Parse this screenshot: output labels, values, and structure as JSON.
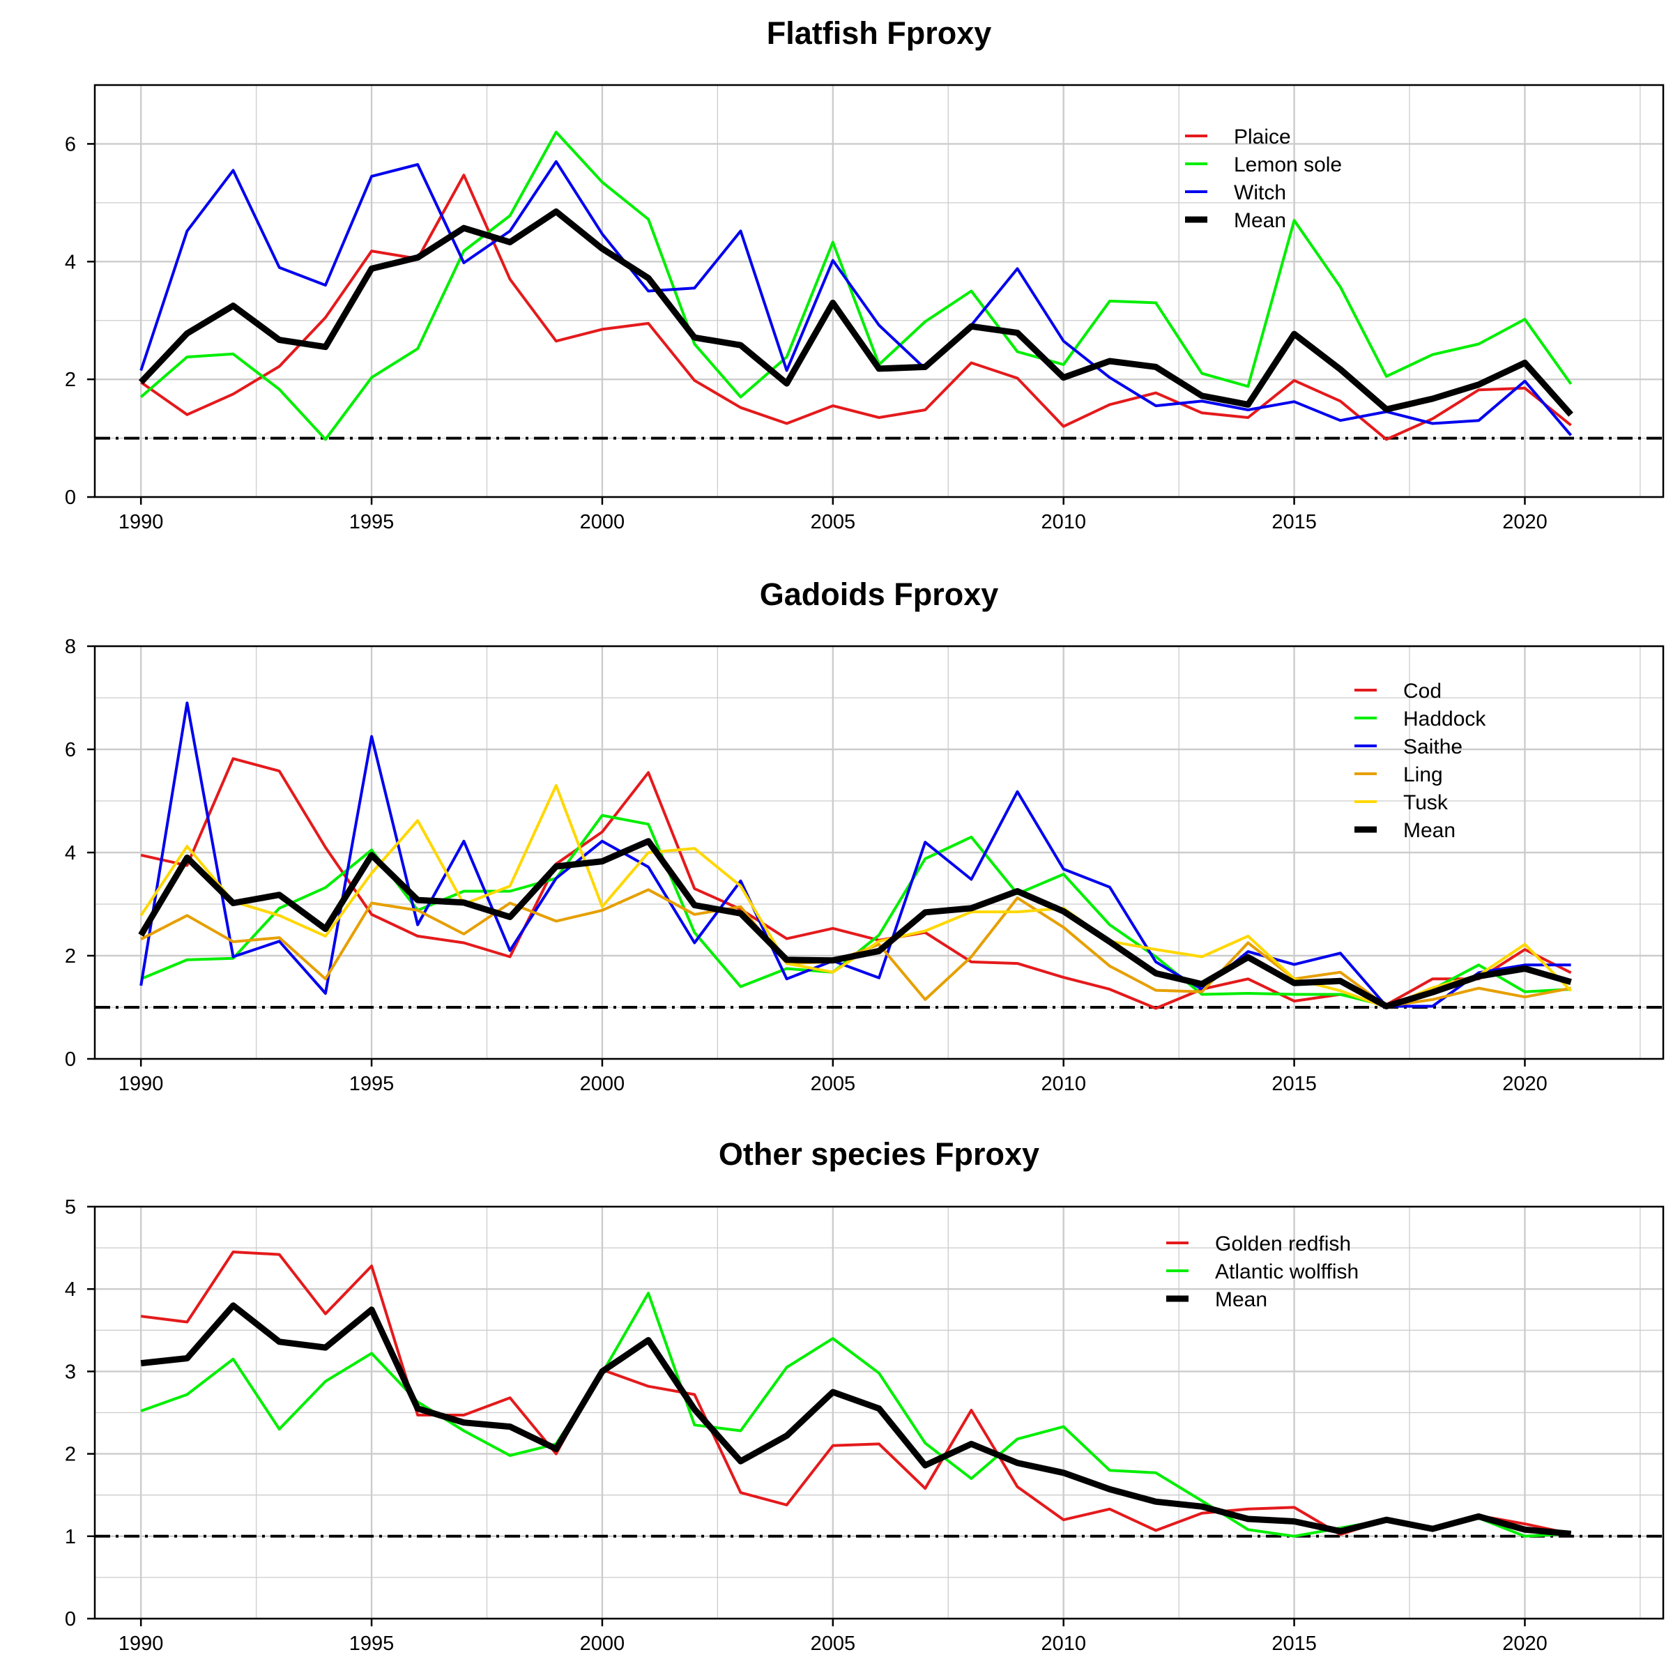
{
  "chart_data": [
    {
      "type": "line",
      "title": "Flatfish Fproxy",
      "x": [
        1990,
        1991,
        1992,
        1993,
        1994,
        1995,
        1996,
        1997,
        1998,
        1999,
        2000,
        2001,
        2002,
        2003,
        2004,
        2005,
        2006,
        2007,
        2008,
        2009,
        2010,
        2011,
        2012,
        2013,
        2014,
        2015,
        2016,
        2017,
        2018,
        2019,
        2020,
        2021
      ],
      "xlim": [
        1989,
        2023
      ],
      "xticks": [
        1990,
        1995,
        2000,
        2005,
        2010,
        2015,
        2020
      ],
      "ylim": [
        0,
        7
      ],
      "yticks": [
        0,
        2,
        4,
        6
      ],
      "reference_line": 1,
      "legend_position": "top-right",
      "grid": true,
      "series": [
        {
          "name": "Plaice",
          "color": "#e41a1c",
          "values": [
            1.95,
            1.4,
            1.75,
            2.22,
            3.05,
            4.18,
            4.05,
            5.47,
            3.7,
            2.65,
            2.85,
            2.95,
            1.98,
            1.52,
            1.25,
            1.55,
            1.35,
            1.48,
            2.28,
            2.02,
            1.2,
            1.57,
            1.77,
            1.43,
            1.35,
            1.98,
            1.63,
            0.98,
            1.33,
            1.82,
            1.85,
            1.22
          ]
        },
        {
          "name": "Lemon sole",
          "color": "#00ee00",
          "values": [
            1.7,
            2.38,
            2.43,
            1.83,
            0.98,
            2.03,
            2.52,
            4.18,
            4.78,
            6.2,
            5.35,
            4.72,
            2.6,
            1.7,
            2.38,
            4.33,
            2.25,
            2.98,
            3.5,
            2.47,
            2.25,
            3.33,
            3.3,
            2.1,
            1.88,
            4.7,
            3.57,
            2.05,
            2.42,
            2.6,
            3.02,
            1.92
          ]
        },
        {
          "name": "Witch",
          "color": "#0000ee",
          "values": [
            2.15,
            4.52,
            5.55,
            3.9,
            3.6,
            5.45,
            5.65,
            3.98,
            4.52,
            5.7,
            4.47,
            3.5,
            3.55,
            4.52,
            2.15,
            4.02,
            2.92,
            2.18,
            2.92,
            3.88,
            2.65,
            2.03,
            1.55,
            1.63,
            1.48,
            1.62,
            1.3,
            1.45,
            1.25,
            1.3,
            1.97,
            1.05
          ]
        },
        {
          "name": "Mean",
          "color": "#000000",
          "values": [
            1.95,
            2.78,
            3.25,
            2.67,
            2.55,
            3.88,
            4.07,
            4.57,
            4.33,
            4.85,
            4.22,
            3.72,
            2.71,
            2.58,
            1.93,
            3.3,
            2.18,
            2.21,
            2.9,
            2.79,
            2.03,
            2.31,
            2.21,
            1.72,
            1.57,
            2.77,
            2.17,
            1.49,
            1.67,
            1.91,
            2.28,
            1.4
          ]
        }
      ]
    },
    {
      "type": "line",
      "title": "Gadoids Fproxy",
      "x": [
        1990,
        1991,
        1992,
        1993,
        1994,
        1995,
        1996,
        1997,
        1998,
        1999,
        2000,
        2001,
        2002,
        2003,
        2004,
        2005,
        2006,
        2007,
        2008,
        2009,
        2010,
        2011,
        2012,
        2013,
        2014,
        2015,
        2016,
        2017,
        2018,
        2019,
        2020,
        2021
      ],
      "xlim": [
        1989,
        2023
      ],
      "xticks": [
        1990,
        1995,
        2000,
        2005,
        2010,
        2015,
        2020
      ],
      "ylim": [
        0,
        8
      ],
      "yticks": [
        0,
        2,
        4,
        6,
        8
      ],
      "reference_line": 1,
      "legend_position": "top-right",
      "grid": true,
      "series": [
        {
          "name": "Cod",
          "color": "#e41a1c",
          "values": [
            3.95,
            3.75,
            5.82,
            5.58,
            4.1,
            2.8,
            2.38,
            2.25,
            1.98,
            3.78,
            4.4,
            5.55,
            3.3,
            2.9,
            2.33,
            2.53,
            2.3,
            2.45,
            1.88,
            1.85,
            1.58,
            1.35,
            0.98,
            1.35,
            1.55,
            1.12,
            1.25,
            1.05,
            1.55,
            1.55,
            2.12,
            1.67
          ]
        },
        {
          "name": "Haddock",
          "color": "#00ee00",
          "values": [
            1.55,
            1.92,
            1.95,
            2.92,
            3.32,
            4.05,
            2.88,
            3.25,
            3.25,
            3.5,
            4.72,
            4.55,
            2.45,
            1.4,
            1.75,
            1.68,
            2.4,
            3.88,
            4.3,
            3.2,
            3.58,
            2.6,
            1.98,
            1.25,
            1.27,
            1.25,
            1.25,
            1.03,
            1.35,
            1.82,
            1.3,
            1.35
          ]
        },
        {
          "name": "Saithe",
          "color": "#0000ee",
          "values": [
            1.42,
            6.9,
            1.98,
            2.28,
            1.27,
            6.25,
            2.6,
            4.22,
            2.1,
            3.5,
            4.22,
            3.72,
            2.25,
            3.45,
            1.55,
            1.9,
            1.57,
            4.2,
            3.48,
            5.18,
            3.68,
            3.33,
            1.88,
            1.35,
            2.08,
            1.83,
            2.05,
            1.02,
            1.02,
            1.67,
            1.82,
            1.82
          ]
        },
        {
          "name": "Ling",
          "color": "#e69f00",
          "values": [
            2.32,
            2.78,
            2.27,
            2.35,
            1.55,
            3.02,
            2.88,
            2.42,
            3.02,
            2.67,
            2.88,
            3.28,
            2.8,
            2.95,
            1.85,
            1.88,
            2.22,
            1.15,
            1.98,
            3.12,
            2.55,
            1.8,
            1.33,
            1.3,
            2.25,
            1.55,
            1.68,
            1.02,
            1.15,
            1.37,
            1.2,
            1.37
          ]
        },
        {
          "name": "Tusk",
          "color": "#ffd700",
          "values": [
            2.78,
            4.12,
            3.05,
            2.78,
            2.38,
            3.6,
            4.62,
            3.0,
            3.35,
            5.3,
            2.95,
            4.0,
            4.08,
            3.35,
            1.85,
            1.68,
            2.28,
            2.48,
            2.85,
            2.85,
            2.92,
            2.28,
            2.12,
            1.98,
            2.38,
            1.55,
            1.32,
            1.0,
            1.38,
            1.62,
            2.22,
            1.32
          ]
        },
        {
          "name": "Mean",
          "color": "#000000",
          "values": [
            2.4,
            3.9,
            3.02,
            3.18,
            2.52,
            3.95,
            3.08,
            3.03,
            2.75,
            3.73,
            3.83,
            4.22,
            2.98,
            2.82,
            1.92,
            1.91,
            2.09,
            2.84,
            2.92,
            3.25,
            2.86,
            2.27,
            1.66,
            1.45,
            1.97,
            1.47,
            1.51,
            1.02,
            1.29,
            1.6,
            1.75,
            1.49
          ]
        }
      ]
    },
    {
      "type": "line",
      "title": "Other species Fproxy",
      "x": [
        1990,
        1991,
        1992,
        1993,
        1994,
        1995,
        1996,
        1997,
        1998,
        1999,
        2000,
        2001,
        2002,
        2003,
        2004,
        2005,
        2006,
        2007,
        2008,
        2009,
        2010,
        2011,
        2012,
        2013,
        2014,
        2015,
        2016,
        2017,
        2018,
        2019,
        2020,
        2021
      ],
      "xlim": [
        1989,
        2023
      ],
      "xticks": [
        1990,
        1995,
        2000,
        2005,
        2010,
        2015,
        2020
      ],
      "ylim": [
        0,
        5
      ],
      "yticks": [
        0,
        1,
        2,
        3,
        4,
        5
      ],
      "reference_line": 1,
      "legend_position": "top-right",
      "grid": true,
      "series": [
        {
          "name": "Golden redfish",
          "color": "#e41a1c",
          "values": [
            3.67,
            3.6,
            4.45,
            4.42,
            3.7,
            4.28,
            2.47,
            2.47,
            2.68,
            2.0,
            3.02,
            2.82,
            2.72,
            1.53,
            1.38,
            2.1,
            2.12,
            1.58,
            2.53,
            1.6,
            1.2,
            1.33,
            1.07,
            1.28,
            1.33,
            1.35,
            1.02,
            1.2,
            1.07,
            1.25,
            1.15,
            1.03
          ]
        },
        {
          "name": "Atlantic wolffish",
          "color": "#00ee00",
          "values": [
            2.52,
            2.72,
            3.15,
            2.3,
            2.88,
            3.22,
            2.63,
            2.28,
            1.98,
            2.12,
            2.98,
            3.95,
            2.35,
            2.28,
            3.05,
            3.4,
            2.98,
            2.13,
            1.7,
            2.18,
            2.33,
            1.8,
            1.77,
            1.43,
            1.08,
            1.0,
            1.1,
            1.2,
            1.1,
            1.22,
            1.0,
            1.03
          ]
        },
        {
          "name": "Mean",
          "color": "#000000",
          "values": [
            3.1,
            3.16,
            3.8,
            3.36,
            3.29,
            3.75,
            2.55,
            2.38,
            2.33,
            2.06,
            3.0,
            3.38,
            2.54,
            1.91,
            2.22,
            2.75,
            2.55,
            1.86,
            2.12,
            1.89,
            1.77,
            1.57,
            1.42,
            1.36,
            1.21,
            1.18,
            1.06,
            1.2,
            1.09,
            1.24,
            1.08,
            1.03
          ]
        }
      ]
    }
  ]
}
